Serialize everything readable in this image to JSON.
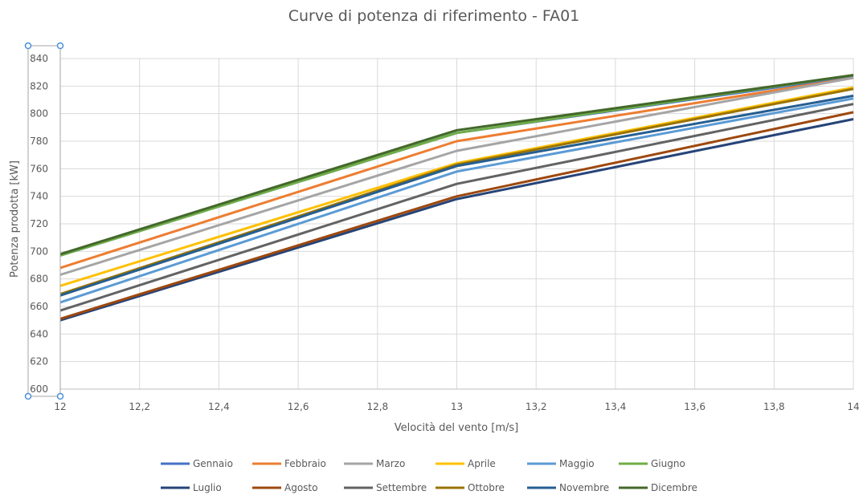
{
  "chart_data": {
    "type": "line",
    "title": "Curve di potenza di riferimento - FA01",
    "xlabel": "Velocità del vento [m/s]",
    "ylabel": "Potenza prodotta [kW]",
    "x": [
      12,
      13,
      14
    ],
    "xlim": [
      12,
      14
    ],
    "ylim": [
      600,
      840
    ],
    "x_ticks": [
      12,
      12.2,
      12.4,
      12.6,
      12.8,
      13,
      13.2,
      13.4,
      13.6,
      13.8,
      14
    ],
    "x_tick_labels": [
      "12",
      "12,2",
      "12,4",
      "12,6",
      "12,8",
      "13",
      "13,2",
      "13,4",
      "13,6",
      "13,8",
      "14"
    ],
    "y_ticks": [
      600,
      620,
      640,
      660,
      680,
      700,
      720,
      740,
      760,
      780,
      800,
      820,
      840
    ],
    "y_tick_labels": [
      "600",
      "620",
      "640",
      "660",
      "680",
      "700",
      "720",
      "740",
      "760",
      "780",
      "800",
      "820",
      "840"
    ],
    "grid": true,
    "legend_position": "bottom",
    "series": [
      {
        "name": "Gennaio",
        "color": "#4472C4",
        "values": [
          697,
          786,
          827
        ]
      },
      {
        "name": "Febbraio",
        "color": "#ED7D31",
        "values": [
          688,
          780,
          826
        ]
      },
      {
        "name": "Marzo",
        "color": "#A5A5A5",
        "values": [
          683,
          773,
          826
        ]
      },
      {
        "name": "Aprile",
        "color": "#FFC000",
        "values": [
          675,
          764,
          819
        ]
      },
      {
        "name": "Maggio",
        "color": "#5B9BD5",
        "values": [
          663,
          758,
          811
        ]
      },
      {
        "name": "Giugno",
        "color": "#70AD47",
        "values": [
          697,
          786,
          828
        ]
      },
      {
        "name": "Luglio",
        "color": "#264478",
        "values": [
          650,
          738,
          796
        ]
      },
      {
        "name": "Agosto",
        "color": "#9E480E",
        "values": [
          651,
          740,
          801
        ]
      },
      {
        "name": "Settembre",
        "color": "#636363",
        "values": [
          657,
          749,
          807
        ]
      },
      {
        "name": "Ottobre",
        "color": "#997300",
        "values": [
          669,
          763,
          818
        ]
      },
      {
        "name": "Novembre",
        "color": "#255E91",
        "values": [
          668,
          762,
          813
        ]
      },
      {
        "name": "Dicembre",
        "color": "#43682B",
        "values": [
          698,
          788,
          828
        ]
      }
    ]
  }
}
